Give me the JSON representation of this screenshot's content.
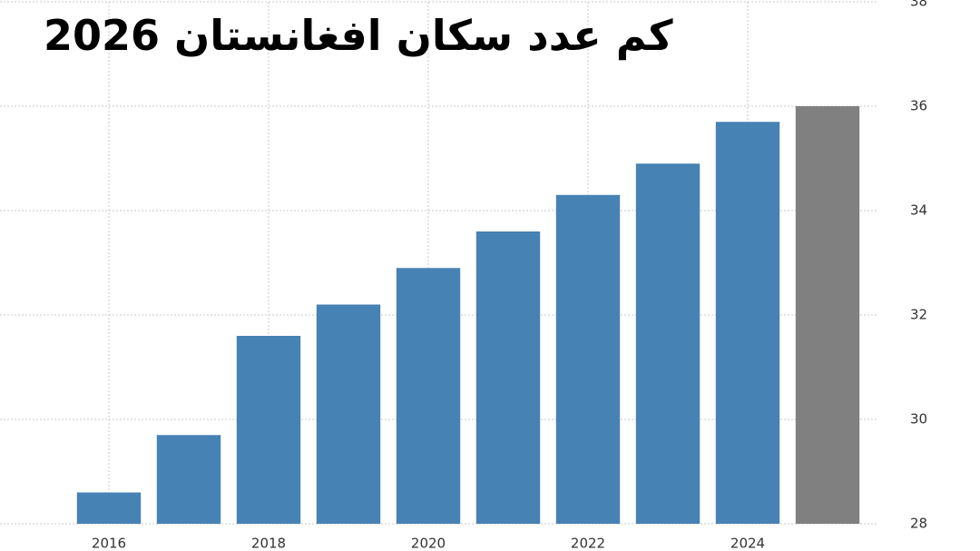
{
  "chart_data": {
    "type": "bar",
    "title": "كم عدد سكان افغانستان 2026",
    "categories": [
      "2016",
      null,
      "2018",
      null,
      "2020",
      null,
      "2022",
      null,
      "2024",
      null
    ],
    "values": [
      28.6,
      29.7,
      31.6,
      32.2,
      32.9,
      33.6,
      34.3,
      34.9,
      35.7,
      36.0
    ],
    "colors": [
      "#4682b4",
      "#4682b4",
      "#4682b4",
      "#4682b4",
      "#4682b4",
      "#4682b4",
      "#4682b4",
      "#4682b4",
      "#4682b4",
      "#808080"
    ],
    "ylim": [
      28,
      38
    ],
    "yticks": [
      28,
      30,
      32,
      34,
      36,
      38
    ],
    "grid": true,
    "y_axis_side": "right"
  }
}
